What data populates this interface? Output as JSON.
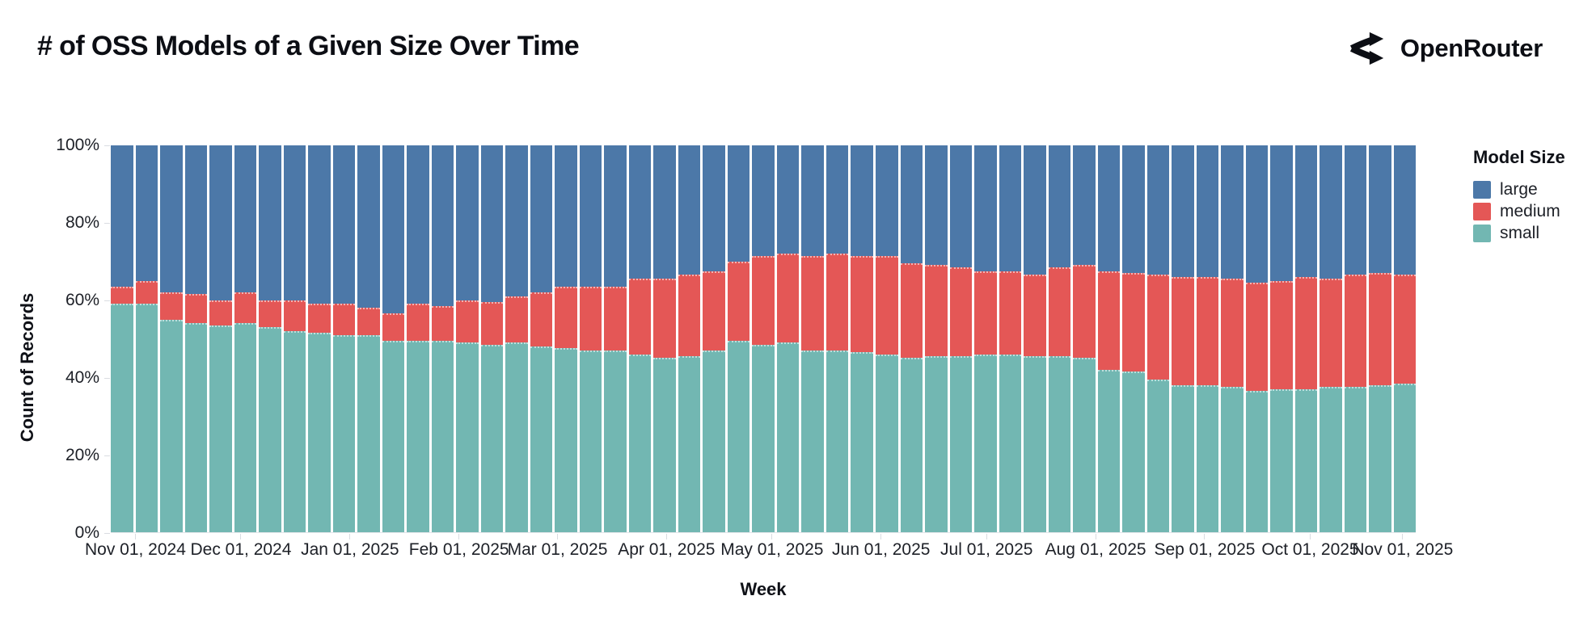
{
  "title": "# of OSS Models of a Given Size Over Time",
  "brand": {
    "name": "OpenRouter",
    "logo_icon": "openrouter-fork-icon"
  },
  "chart_data": {
    "type": "bar",
    "stacked": true,
    "normalized": true,
    "title": "# of OSS Models of a Given Size Over Time",
    "xlabel": "Week",
    "ylabel": "Count of Records",
    "ylim": [
      "0%",
      "100%"
    ],
    "grid": false,
    "y_ticks": [
      "0%",
      "20%",
      "40%",
      "60%",
      "80%",
      "100%"
    ],
    "x_ticks": [
      "Nov 01, 2024",
      "Dec 01, 2024",
      "Jan 01, 2025",
      "Feb 01, 2025",
      "Mar 01, 2025",
      "Apr 01, 2025",
      "May 01, 2025",
      "Jun 01, 2025",
      "Jul 01, 2025",
      "Aug 01, 2025",
      "Sep 01, 2025",
      "Oct 01, 2025",
      "Nov 01, 2025"
    ],
    "legend": {
      "title": "Model Size",
      "position": "right",
      "entries": [
        {
          "label": "large",
          "color": "#4c78a8"
        },
        {
          "label": "medium",
          "color": "#e45756"
        },
        {
          "label": "small",
          "color": "#72b7b2"
        }
      ]
    },
    "stack_order_bottom_to_top": [
      "small",
      "medium",
      "large"
    ],
    "categories": [
      "Nov 01, 2024",
      "Nov 08, 2024",
      "Nov 15, 2024",
      "Nov 22, 2024",
      "Nov 29, 2024",
      "Dec 06, 2024",
      "Dec 13, 2024",
      "Dec 20, 2024",
      "Dec 27, 2024",
      "Jan 03, 2025",
      "Jan 10, 2025",
      "Jan 17, 2025",
      "Jan 24, 2025",
      "Jan 31, 2025",
      "Feb 07, 2025",
      "Feb 14, 2025",
      "Feb 21, 2025",
      "Feb 28, 2025",
      "Mar 07, 2025",
      "Mar 14, 2025",
      "Mar 21, 2025",
      "Mar 28, 2025",
      "Apr 04, 2025",
      "Apr 11, 2025",
      "Apr 18, 2025",
      "Apr 25, 2025",
      "May 02, 2025",
      "May 09, 2025",
      "May 16, 2025",
      "May 23, 2025",
      "May 30, 2025",
      "Jun 06, 2025",
      "Jun 13, 2025",
      "Jun 20, 2025",
      "Jun 27, 2025",
      "Jul 04, 2025",
      "Jul 11, 2025",
      "Jul 18, 2025",
      "Jul 25, 2025",
      "Aug 01, 2025",
      "Aug 08, 2025",
      "Aug 15, 2025",
      "Aug 22, 2025",
      "Aug 29, 2025",
      "Sep 05, 2025",
      "Sep 12, 2025",
      "Sep 19, 2025",
      "Sep 26, 2025",
      "Oct 03, 2025",
      "Oct 10, 2025",
      "Oct 17, 2025",
      "Oct 24, 2025",
      "Oct 31, 2025"
    ],
    "series": [
      {
        "name": "small",
        "color": "#72b7b2",
        "unit": "percent",
        "values": [
          59,
          59,
          55,
          54,
          53.5,
          54,
          53,
          52,
          51.5,
          51,
          51,
          49.5,
          49.5,
          49.5,
          49,
          48.5,
          49,
          48,
          47.5,
          47,
          47,
          46,
          45,
          45.5,
          47,
          49.5,
          48.5,
          49,
          47,
          47,
          46.5,
          46,
          45,
          45.5,
          45.5,
          46,
          46,
          45.5,
          45.5,
          45,
          42,
          41.5,
          39.5,
          38,
          38,
          37.5,
          36.5,
          37,
          37,
          37.5,
          37.5,
          38,
          38.5
        ]
      },
      {
        "name": "medium",
        "color": "#e45756",
        "unit": "percent",
        "values": [
          4.5,
          6,
          7,
          7.5,
          6.5,
          8,
          7,
          8,
          7.5,
          8,
          7,
          7,
          9.5,
          9,
          11,
          11,
          12,
          14,
          16,
          16.5,
          16.5,
          19.5,
          20.5,
          21,
          20.5,
          20.5,
          23,
          23,
          24.5,
          25,
          25,
          25.5,
          24.5,
          23.5,
          23,
          21.5,
          21.5,
          21,
          23,
          24,
          25.5,
          25.5,
          27,
          28,
          28,
          28,
          28,
          28,
          29,
          28,
          29,
          29,
          28
        ]
      },
      {
        "name": "large",
        "color": "#4c78a8",
        "unit": "percent",
        "values": [
          36.5,
          35,
          38,
          38.5,
          40,
          38,
          40,
          40,
          41,
          41,
          42,
          43.5,
          41,
          41.5,
          40,
          40.5,
          39,
          38,
          36.5,
          36.5,
          36.5,
          34.5,
          34.5,
          33.5,
          32.5,
          30,
          28.5,
          28,
          28.5,
          28,
          28.5,
          28.5,
          30.5,
          31,
          31.5,
          32.5,
          32.5,
          33.5,
          31.5,
          31,
          32.5,
          33,
          33.5,
          34,
          34,
          34.5,
          35.5,
          35,
          34,
          34.5,
          33.5,
          33,
          33.5
        ]
      }
    ]
  }
}
